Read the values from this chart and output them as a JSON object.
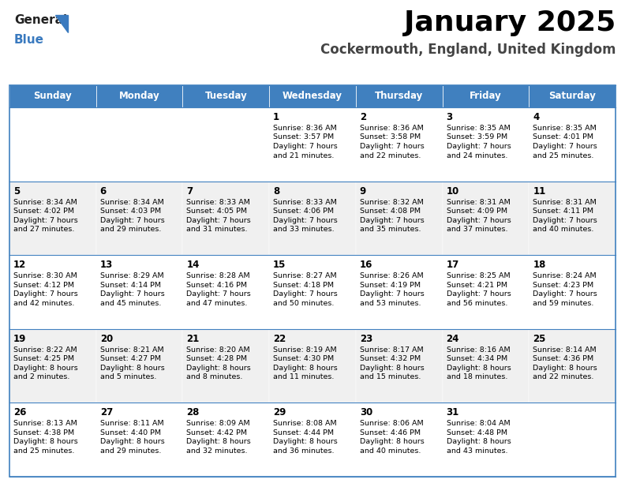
{
  "title": "January 2025",
  "subtitle": "Cockermouth, England, United Kingdom",
  "header_bg": "#4080bf",
  "header_text_color": "#ffffff",
  "day_names": [
    "Sunday",
    "Monday",
    "Tuesday",
    "Wednesday",
    "Thursday",
    "Friday",
    "Saturday"
  ],
  "bg_color": "#ffffff",
  "row_alt_color": "#f0f0f0",
  "cell_text_color": "#000000",
  "border_color": "#4080bf",
  "title_color": "#000000",
  "subtitle_color": "#444444",
  "logo_general_color": "#222222",
  "logo_blue_color": "#3a7abf",
  "logo_triangle_color": "#3a7abf",
  "calendar": [
    [
      null,
      null,
      null,
      {
        "day": 1,
        "sunrise": "8:36 AM",
        "sunset": "3:57 PM",
        "daylight": "7 hours",
        "daylight2": "and 21 minutes."
      },
      {
        "day": 2,
        "sunrise": "8:36 AM",
        "sunset": "3:58 PM",
        "daylight": "7 hours",
        "daylight2": "and 22 minutes."
      },
      {
        "day": 3,
        "sunrise": "8:35 AM",
        "sunset": "3:59 PM",
        "daylight": "7 hours",
        "daylight2": "and 24 minutes."
      },
      {
        "day": 4,
        "sunrise": "8:35 AM",
        "sunset": "4:01 PM",
        "daylight": "7 hours",
        "daylight2": "and 25 minutes."
      }
    ],
    [
      {
        "day": 5,
        "sunrise": "8:34 AM",
        "sunset": "4:02 PM",
        "daylight": "7 hours",
        "daylight2": "and 27 minutes."
      },
      {
        "day": 6,
        "sunrise": "8:34 AM",
        "sunset": "4:03 PM",
        "daylight": "7 hours",
        "daylight2": "and 29 minutes."
      },
      {
        "day": 7,
        "sunrise": "8:33 AM",
        "sunset": "4:05 PM",
        "daylight": "7 hours",
        "daylight2": "and 31 minutes."
      },
      {
        "day": 8,
        "sunrise": "8:33 AM",
        "sunset": "4:06 PM",
        "daylight": "7 hours",
        "daylight2": "and 33 minutes."
      },
      {
        "day": 9,
        "sunrise": "8:32 AM",
        "sunset": "4:08 PM",
        "daylight": "7 hours",
        "daylight2": "and 35 minutes."
      },
      {
        "day": 10,
        "sunrise": "8:31 AM",
        "sunset": "4:09 PM",
        "daylight": "7 hours",
        "daylight2": "and 37 minutes."
      },
      {
        "day": 11,
        "sunrise": "8:31 AM",
        "sunset": "4:11 PM",
        "daylight": "7 hours",
        "daylight2": "and 40 minutes."
      }
    ],
    [
      {
        "day": 12,
        "sunrise": "8:30 AM",
        "sunset": "4:12 PM",
        "daylight": "7 hours",
        "daylight2": "and 42 minutes."
      },
      {
        "day": 13,
        "sunrise": "8:29 AM",
        "sunset": "4:14 PM",
        "daylight": "7 hours",
        "daylight2": "and 45 minutes."
      },
      {
        "day": 14,
        "sunrise": "8:28 AM",
        "sunset": "4:16 PM",
        "daylight": "7 hours",
        "daylight2": "and 47 minutes."
      },
      {
        "day": 15,
        "sunrise": "8:27 AM",
        "sunset": "4:18 PM",
        "daylight": "7 hours",
        "daylight2": "and 50 minutes."
      },
      {
        "day": 16,
        "sunrise": "8:26 AM",
        "sunset": "4:19 PM",
        "daylight": "7 hours",
        "daylight2": "and 53 minutes."
      },
      {
        "day": 17,
        "sunrise": "8:25 AM",
        "sunset": "4:21 PM",
        "daylight": "7 hours",
        "daylight2": "and 56 minutes."
      },
      {
        "day": 18,
        "sunrise": "8:24 AM",
        "sunset": "4:23 PM",
        "daylight": "7 hours",
        "daylight2": "and 59 minutes."
      }
    ],
    [
      {
        "day": 19,
        "sunrise": "8:22 AM",
        "sunset": "4:25 PM",
        "daylight": "8 hours",
        "daylight2": "and 2 minutes."
      },
      {
        "day": 20,
        "sunrise": "8:21 AM",
        "sunset": "4:27 PM",
        "daylight": "8 hours",
        "daylight2": "and 5 minutes."
      },
      {
        "day": 21,
        "sunrise": "8:20 AM",
        "sunset": "4:28 PM",
        "daylight": "8 hours",
        "daylight2": "and 8 minutes."
      },
      {
        "day": 22,
        "sunrise": "8:19 AM",
        "sunset": "4:30 PM",
        "daylight": "8 hours",
        "daylight2": "and 11 minutes."
      },
      {
        "day": 23,
        "sunrise": "8:17 AM",
        "sunset": "4:32 PM",
        "daylight": "8 hours",
        "daylight2": "and 15 minutes."
      },
      {
        "day": 24,
        "sunrise": "8:16 AM",
        "sunset": "4:34 PM",
        "daylight": "8 hours",
        "daylight2": "and 18 minutes."
      },
      {
        "day": 25,
        "sunrise": "8:14 AM",
        "sunset": "4:36 PM",
        "daylight": "8 hours",
        "daylight2": "and 22 minutes."
      }
    ],
    [
      {
        "day": 26,
        "sunrise": "8:13 AM",
        "sunset": "4:38 PM",
        "daylight": "8 hours",
        "daylight2": "and 25 minutes."
      },
      {
        "day": 27,
        "sunrise": "8:11 AM",
        "sunset": "4:40 PM",
        "daylight": "8 hours",
        "daylight2": "and 29 minutes."
      },
      {
        "day": 28,
        "sunrise": "8:09 AM",
        "sunset": "4:42 PM",
        "daylight": "8 hours",
        "daylight2": "and 32 minutes."
      },
      {
        "day": 29,
        "sunrise": "8:08 AM",
        "sunset": "4:44 PM",
        "daylight": "8 hours",
        "daylight2": "and 36 minutes."
      },
      {
        "day": 30,
        "sunrise": "8:06 AM",
        "sunset": "4:46 PM",
        "daylight": "8 hours",
        "daylight2": "and 40 minutes."
      },
      {
        "day": 31,
        "sunrise": "8:04 AM",
        "sunset": "4:48 PM",
        "daylight": "8 hours",
        "daylight2": "and 43 minutes."
      },
      null
    ]
  ],
  "figsize": [
    7.92,
    6.12
  ],
  "dpi": 100
}
